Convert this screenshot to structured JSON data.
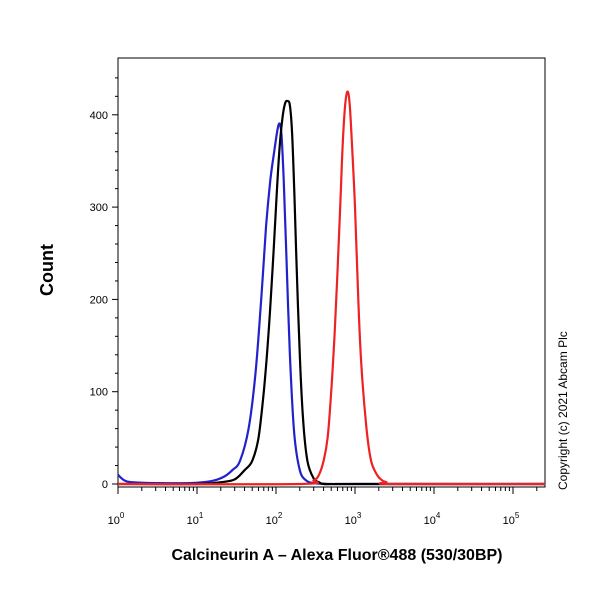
{
  "chart_data": {
    "type": "line",
    "xlabel": "Calcineurin A – Alexa Fluor®488 (530/30BP)",
    "ylabel": "Count",
    "x_scale": "log",
    "xlim": [
      1,
      300000
    ],
    "ylim": [
      0,
      460
    ],
    "x_ticks": [
      {
        "base": "10",
        "exp": "0",
        "value": 1
      },
      {
        "base": "10",
        "exp": "1",
        "value": 10
      },
      {
        "base": "10",
        "exp": "2",
        "value": 100
      },
      {
        "base": "10",
        "exp": "3",
        "value": 1000
      },
      {
        "base": "10",
        "exp": "4",
        "value": 10000
      },
      {
        "base": "10",
        "exp": "5",
        "value": 100000
      }
    ],
    "y_ticks": [
      {
        "label": "0",
        "value": 0
      },
      {
        "label": "100",
        "value": 100
      },
      {
        "label": "200",
        "value": 200
      },
      {
        "label": "300",
        "value": 300
      },
      {
        "label": "400",
        "value": 400
      }
    ],
    "grid": false,
    "legend": "none",
    "annotation": "Copyright (c) 2021 Abcam Plc",
    "series": [
      {
        "color": "#2222cc",
        "x": [
          1,
          1.2,
          1.5,
          3,
          8,
          15,
          22,
          28,
          35,
          45,
          55,
          65,
          75,
          85,
          95,
          105,
          112,
          118,
          125,
          135,
          150,
          170,
          200,
          240,
          300,
          500,
          1000,
          10000,
          300000
        ],
        "y": [
          10,
          4,
          2,
          1,
          1,
          3,
          8,
          15,
          25,
          60,
          120,
          200,
          280,
          330,
          360,
          385,
          390,
          375,
          330,
          250,
          140,
          55,
          15,
          4,
          1,
          0,
          0,
          0,
          0
        ]
      },
      {
        "color": "#000000",
        "x": [
          1,
          10,
          20,
          30,
          40,
          50,
          60,
          70,
          80,
          90,
          100,
          110,
          120,
          130,
          140,
          150,
          160,
          170,
          180,
          200,
          220,
          250,
          300,
          350,
          400,
          600,
          1000,
          300000
        ],
        "y": [
          0,
          0,
          2,
          5,
          15,
          25,
          50,
          100,
          160,
          230,
          300,
          360,
          395,
          412,
          415,
          410,
          380,
          320,
          250,
          140,
          70,
          25,
          6,
          2,
          0,
          0,
          0,
          0
        ]
      },
      {
        "color": "#ee2222",
        "x": [
          1,
          200,
          300,
          350,
          400,
          450,
          500,
          550,
          600,
          650,
          700,
          750,
          800,
          850,
          900,
          1000,
          1100,
          1200,
          1400,
          1600,
          1900,
          2200,
          2500,
          3000,
          300000
        ],
        "y": [
          0,
          0,
          4,
          10,
          25,
          50,
          100,
          160,
          230,
          300,
          370,
          410,
          425,
          415,
          380,
          300,
          200,
          130,
          60,
          25,
          10,
          4,
          2,
          0,
          0
        ]
      }
    ]
  }
}
